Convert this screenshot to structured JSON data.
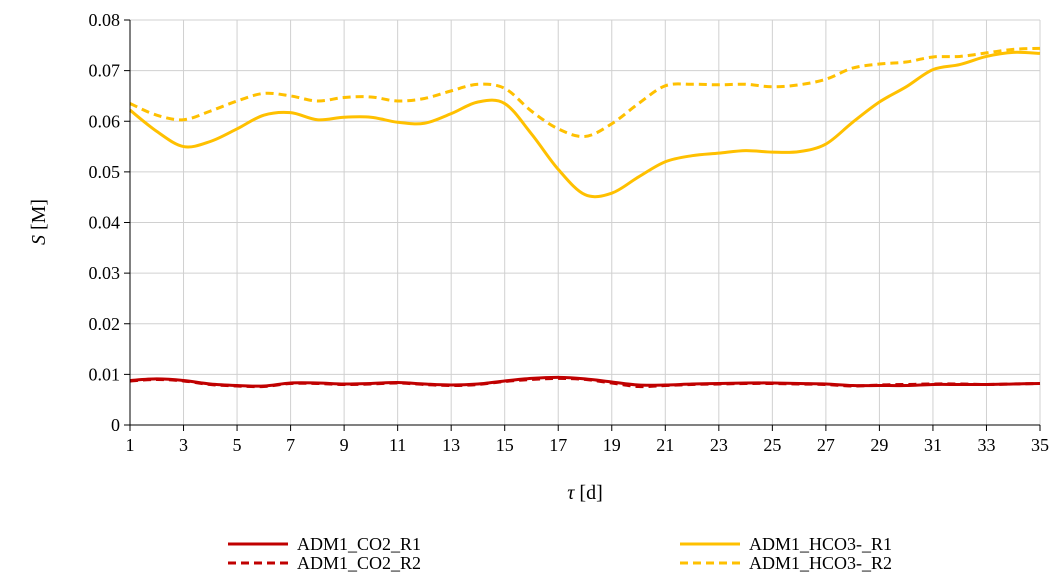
{
  "chart_data": {
    "type": "line",
    "title": "",
    "xlabel": {
      "symbol": "τ",
      "unit": " [d]"
    },
    "ylabel": {
      "symbol": "S",
      "unit": " [M]"
    },
    "xlim": [
      1,
      35
    ],
    "ylim": [
      0,
      0.08
    ],
    "xticks": [
      1,
      3,
      5,
      7,
      9,
      11,
      13,
      15,
      17,
      19,
      21,
      23,
      25,
      27,
      29,
      31,
      33,
      35
    ],
    "yticks": [
      0,
      0.01,
      0.02,
      0.03,
      0.04,
      0.05,
      0.06,
      0.07,
      0.08
    ],
    "ytick_labels": [
      "0",
      "0.01",
      "0.02",
      "0.03",
      "0.04",
      "0.05",
      "0.06",
      "0.07",
      "0.08"
    ],
    "grid": true,
    "legend_position": "bottom",
    "series": [
      {
        "name": "ADM1_CO2_R1",
        "color": "#C00000",
        "dash": "solid",
        "x": [
          1,
          2,
          3,
          4,
          5,
          6,
          7,
          8,
          9,
          10,
          11,
          12,
          13,
          14,
          15,
          16,
          17,
          18,
          19,
          20,
          21,
          22,
          23,
          24,
          25,
          26,
          27,
          28,
          29,
          30,
          31,
          32,
          33,
          34,
          35
        ],
        "y": [
          0.0088,
          0.0091,
          0.0088,
          0.0081,
          0.0078,
          0.0077,
          0.0083,
          0.0083,
          0.0081,
          0.0082,
          0.0084,
          0.0081,
          0.0079,
          0.0081,
          0.0087,
          0.0092,
          0.0094,
          0.0091,
          0.0085,
          0.0079,
          0.0079,
          0.0081,
          0.0082,
          0.0083,
          0.0083,
          0.0082,
          0.0081,
          0.0078,
          0.0078,
          0.0078,
          0.008,
          0.008,
          0.008,
          0.0081,
          0.0082
        ]
      },
      {
        "name": "ADM1_CO2_R2",
        "color": "#C00000",
        "dash": "dashed",
        "x": [
          1,
          2,
          3,
          4,
          5,
          6,
          7,
          8,
          9,
          10,
          11,
          12,
          13,
          14,
          15,
          16,
          17,
          18,
          19,
          20,
          21,
          22,
          23,
          24,
          25,
          26,
          27,
          28,
          29,
          30,
          31,
          32,
          33,
          34,
          35
        ],
        "y": [
          0.0087,
          0.009,
          0.0087,
          0.008,
          0.0077,
          0.0076,
          0.0082,
          0.0082,
          0.008,
          0.0081,
          0.0083,
          0.008,
          0.0078,
          0.008,
          0.0086,
          0.009,
          0.0092,
          0.009,
          0.0083,
          0.0076,
          0.0078,
          0.008,
          0.0081,
          0.0082,
          0.0082,
          0.0081,
          0.008,
          0.0077,
          0.0079,
          0.008,
          0.0081,
          0.0081,
          0.008,
          0.0081,
          0.0082
        ]
      },
      {
        "name": "ADM1_HCO3-_R1",
        "color": "#FFC000",
        "dash": "solid",
        "x": [
          1,
          2,
          3,
          4,
          5,
          6,
          7,
          8,
          9,
          10,
          11,
          12,
          13,
          14,
          15,
          16,
          17,
          18,
          19,
          20,
          21,
          22,
          23,
          24,
          25,
          26,
          27,
          28,
          29,
          30,
          31,
          32,
          33,
          34,
          35
        ],
        "y": [
          0.0622,
          0.058,
          0.055,
          0.056,
          0.0585,
          0.0612,
          0.0617,
          0.0603,
          0.0608,
          0.0608,
          0.0598,
          0.0596,
          0.0615,
          0.0638,
          0.0635,
          0.0575,
          0.0505,
          0.0455,
          0.0458,
          0.049,
          0.052,
          0.0532,
          0.0537,
          0.0542,
          0.0539,
          0.054,
          0.0555,
          0.0598,
          0.0638,
          0.0668,
          0.0702,
          0.0712,
          0.0728,
          0.0736,
          0.0734
        ]
      },
      {
        "name": "ADM1_HCO3-_R2",
        "color": "#FFC000",
        "dash": "dashed",
        "x": [
          1,
          2,
          3,
          4,
          5,
          6,
          7,
          8,
          9,
          10,
          11,
          12,
          13,
          14,
          15,
          16,
          17,
          18,
          19,
          20,
          21,
          22,
          23,
          24,
          25,
          26,
          27,
          28,
          29,
          30,
          31,
          32,
          33,
          34,
          35
        ],
        "y": [
          0.0635,
          0.0612,
          0.0603,
          0.062,
          0.064,
          0.0655,
          0.065,
          0.064,
          0.0647,
          0.0648,
          0.064,
          0.0645,
          0.066,
          0.0673,
          0.0665,
          0.062,
          0.0585,
          0.057,
          0.0595,
          0.0635,
          0.067,
          0.0673,
          0.0672,
          0.0673,
          0.0668,
          0.0672,
          0.0683,
          0.0705,
          0.0713,
          0.0717,
          0.0727,
          0.0728,
          0.0735,
          0.0742,
          0.0744
        ]
      }
    ]
  }
}
